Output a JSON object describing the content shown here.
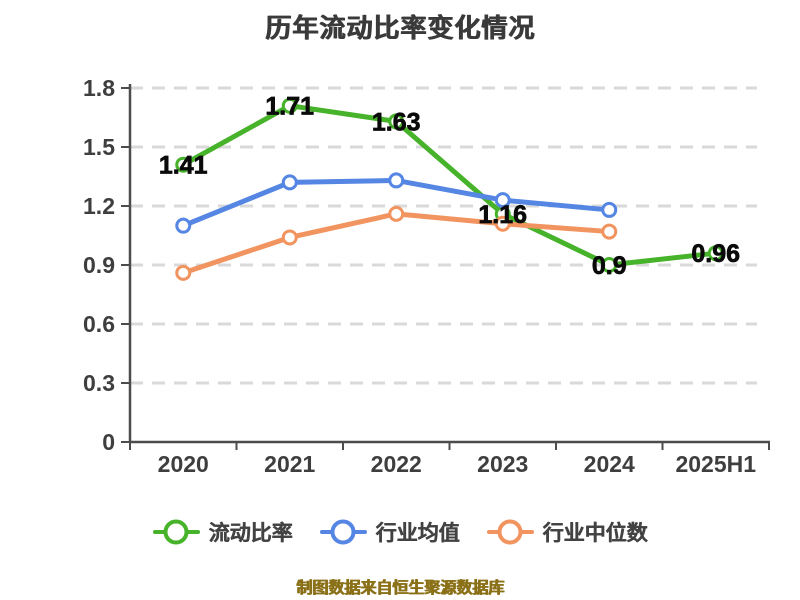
{
  "page": {
    "background": "#ffffff"
  },
  "chart_data": {
    "type": "line",
    "title": "历年流动比率变化情况",
    "categories": [
      "2020",
      "2021",
      "2022",
      "2023",
      "2024",
      "2025H1"
    ],
    "y_ticks": [
      0,
      0.3,
      0.6,
      0.9,
      1.2,
      1.5,
      1.8
    ],
    "y_tick_labels": [
      "0",
      "0.3",
      "0.6",
      "0.9",
      "1.2",
      "1.5",
      "1.8"
    ],
    "ylim": [
      0,
      1.8
    ],
    "xlabel": "",
    "ylabel": "",
    "grid": "horizontal-dashed",
    "legend_position": "bottom",
    "series": [
      {
        "key": "current-ratio",
        "name": "流动比率",
        "color": "#46b32a",
        "values": [
          1.41,
          1.71,
          1.63,
          1.16,
          0.9,
          0.96
        ],
        "labels": [
          "1.41",
          "1.71",
          "1.63",
          "1.16",
          "0.9",
          "0.96"
        ],
        "show_labels": true
      },
      {
        "key": "industry-average",
        "name": "行业均值",
        "color": "#5586e4",
        "values": [
          1.1,
          1.32,
          1.33,
          1.23,
          1.18,
          null
        ],
        "show_labels": false
      },
      {
        "key": "industry-median",
        "name": "行业中位数",
        "color": "#f2945f",
        "values": [
          0.86,
          1.04,
          1.16,
          1.11,
          1.07,
          null
        ],
        "show_labels": false
      }
    ]
  },
  "footer": {
    "text": "制图数据来自恒生聚源数据库"
  },
  "colors": {
    "title_text": "#3a3a3a",
    "axis": "#4c4c4c",
    "grid": "#d9d9d9",
    "tick_label": "#3e3e3e",
    "data_label": "#0a0a0a",
    "legend_label": "#424242",
    "footer_text": "#8a7118",
    "marker_fill": "#ffffff"
  }
}
